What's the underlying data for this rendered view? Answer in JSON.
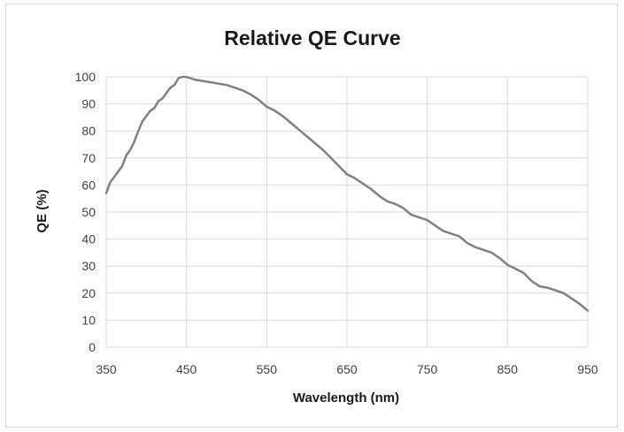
{
  "chart_data": {
    "type": "line",
    "title": "Relative QE Curve",
    "xlabel": "Wavelength (nm)",
    "ylabel": "QE (%)",
    "xlim": [
      350,
      950
    ],
    "ylim": [
      0,
      100
    ],
    "x_ticks": [
      350,
      450,
      550,
      650,
      750,
      850,
      950
    ],
    "y_ticks": [
      0,
      10,
      20,
      30,
      40,
      50,
      60,
      70,
      80,
      90,
      100
    ],
    "grid": true,
    "legend": "none",
    "series": [
      {
        "name": "Relative QE",
        "color": "#808080",
        "x": [
          350,
          355,
          360,
          365,
          370,
          375,
          380,
          385,
          390,
          395,
          400,
          405,
          410,
          415,
          420,
          425,
          430,
          435,
          440,
          445,
          450,
          455,
          460,
          470,
          480,
          490,
          500,
          510,
          520,
          530,
          540,
          550,
          560,
          570,
          580,
          590,
          600,
          610,
          620,
          630,
          640,
          650,
          660,
          670,
          680,
          690,
          700,
          710,
          720,
          730,
          740,
          750,
          760,
          770,
          780,
          790,
          800,
          810,
          820,
          830,
          840,
          850,
          860,
          870,
          880,
          890,
          900,
          910,
          920,
          930,
          940,
          950
        ],
        "values": [
          57,
          61,
          63,
          65,
          67,
          71,
          73,
          76,
          80,
          83.5,
          85.5,
          87.5,
          88.5,
          91,
          92,
          94,
          96,
          97,
          99.5,
          100,
          100,
          99.5,
          99,
          98.5,
          98,
          97.5,
          97,
          96,
          95,
          93.5,
          91.5,
          89,
          87.5,
          85.5,
          83,
          80.5,
          78,
          75.5,
          73,
          70,
          67,
          64,
          62.5,
          60.5,
          58.5,
          56,
          54,
          53,
          51.5,
          49,
          48,
          47,
          45,
          43,
          42,
          41,
          38.5,
          37,
          36,
          35,
          33,
          30.5,
          29,
          27.5,
          24.5,
          22.5,
          22,
          21,
          20,
          18,
          16,
          13.5
        ]
      }
    ]
  }
}
